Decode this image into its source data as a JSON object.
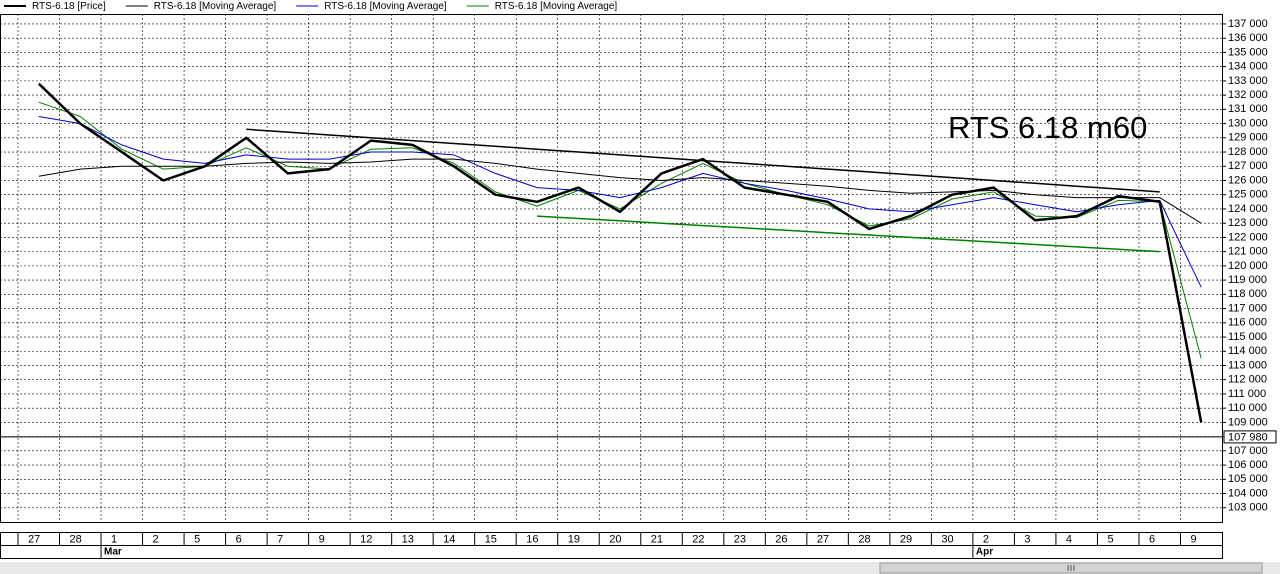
{
  "chart_data": {
    "type": "line",
    "annotation": "RTS 6.18 m60",
    "categories": [
      "27",
      "28",
      "1",
      "2",
      "5",
      "6",
      "7",
      "9",
      "12",
      "13",
      "14",
      "15",
      "16",
      "19",
      "20",
      "21",
      "22",
      "23",
      "26",
      "27",
      "28",
      "29",
      "30",
      "2",
      "3",
      "4",
      "5",
      "6",
      "9"
    ],
    "months": [
      null,
      null,
      "Mar",
      null,
      null,
      null,
      null,
      null,
      null,
      null,
      null,
      null,
      null,
      null,
      null,
      null,
      null,
      null,
      null,
      null,
      null,
      null,
      null,
      "Apr",
      null,
      null,
      null,
      null,
      null
    ],
    "series": [
      {
        "name": "RTS-6.18 [Price]",
        "color": "#000000",
        "values": [
          132800,
          130000,
          128000,
          126000,
          127000,
          129000,
          126500,
          126800,
          128800,
          128500,
          127000,
          125000,
          124500,
          125500,
          123800,
          126500,
          127500,
          125500,
          125000,
          124500,
          122600,
          123500,
          125000,
          125500,
          123200,
          123500,
          124900,
          124500,
          109000
        ]
      },
      {
        "name": "RTS-6.18 [Moving Average]",
        "color": "#000000",
        "values": [
          126300,
          126800,
          127000,
          127000,
          127000,
          127200,
          127300,
          127200,
          127300,
          127500,
          127500,
          127200,
          126800,
          126500,
          126200,
          126000,
          126200,
          126000,
          125800,
          125600,
          125300,
          125100,
          125200,
          125300,
          125000,
          124800,
          124800,
          124800,
          123000
        ]
      },
      {
        "name": "RTS-6.18 [Moving Average]",
        "color": "#0000c0",
        "values": [
          130500,
          130000,
          128500,
          127500,
          127200,
          127800,
          127500,
          127500,
          128000,
          128000,
          127800,
          126500,
          125500,
          125300,
          124800,
          125500,
          126500,
          125800,
          125300,
          124700,
          124000,
          123800,
          124300,
          124800,
          124300,
          123800,
          124300,
          124600,
          118500
        ]
      },
      {
        "name": "RTS-6.18 [Moving Average]",
        "color": "#008000",
        "values": [
          131500,
          130500,
          128200,
          126800,
          127000,
          128300,
          127000,
          126800,
          128200,
          128300,
          127200,
          125200,
          124200,
          125300,
          124000,
          125800,
          127200,
          125800,
          125000,
          124300,
          122800,
          123300,
          124700,
          125200,
          123500,
          123400,
          124600,
          124500,
          113500
        ]
      }
    ],
    "trendlines": [
      {
        "color": "#000000",
        "values": [
          null,
          null,
          null,
          null,
          null,
          129600,
          129400,
          129200,
          129000,
          128800,
          128600,
          128400,
          128200,
          128000,
          127800,
          127600,
          127400,
          127200,
          127000,
          126800,
          126600,
          126400,
          126200,
          126000,
          125800,
          125600,
          125400,
          125200,
          null
        ]
      },
      {
        "color": "#008000",
        "values": [
          null,
          null,
          null,
          null,
          null,
          null,
          null,
          null,
          null,
          null,
          null,
          null,
          123500,
          123330,
          123170,
          123000,
          122830,
          122670,
          122500,
          122330,
          122170,
          122000,
          121830,
          121670,
          121500,
          121330,
          121170,
          121000,
          null
        ]
      }
    ],
    "last_value": {
      "value": 107980,
      "label": "107 980"
    },
    "ylim": [
      102000,
      137700
    ],
    "yticks": [
      {
        "value": 103000,
        "label": "103 000"
      },
      {
        "value": 104000,
        "label": "104 000"
      },
      {
        "value": 105000,
        "label": "105 000"
      },
      {
        "value": 106000,
        "label": "106 000"
      },
      {
        "value": 107000,
        "label": "107 000"
      },
      {
        "value": 108000,
        "label": "108 000"
      },
      {
        "value": 109000,
        "label": "109 000"
      },
      {
        "value": 110000,
        "label": "110 000"
      },
      {
        "value": 111000,
        "label": "111 000"
      },
      {
        "value": 112000,
        "label": "112 000"
      },
      {
        "value": 113000,
        "label": "113 000"
      },
      {
        "value": 114000,
        "label": "114 000"
      },
      {
        "value": 115000,
        "label": "115 000"
      },
      {
        "value": 116000,
        "label": "116 000"
      },
      {
        "value": 117000,
        "label": "117 000"
      },
      {
        "value": 118000,
        "label": "118 000"
      },
      {
        "value": 119000,
        "label": "119 000"
      },
      {
        "value": 120000,
        "label": "120 000"
      },
      {
        "value": 121000,
        "label": "121 000"
      },
      {
        "value": 122000,
        "label": "122 000"
      },
      {
        "value": 123000,
        "label": "123 000"
      },
      {
        "value": 124000,
        "label": "124 000"
      },
      {
        "value": 125000,
        "label": "125 000"
      },
      {
        "value": 126000,
        "label": "126 000"
      },
      {
        "value": 127000,
        "label": "127 000"
      },
      {
        "value": 128000,
        "label": "128 000"
      },
      {
        "value": 129000,
        "label": "129 000"
      },
      {
        "value": 130000,
        "label": "130 000"
      },
      {
        "value": 131000,
        "label": "131 000"
      },
      {
        "value": 132000,
        "label": "132 000"
      },
      {
        "value": 133000,
        "label": "133 000"
      },
      {
        "value": 134000,
        "label": "134 000"
      },
      {
        "value": 135000,
        "label": "135 000"
      },
      {
        "value": 136000,
        "label": "136 000"
      },
      {
        "value": 137000,
        "label": "137 000"
      }
    ],
    "grid": true
  }
}
